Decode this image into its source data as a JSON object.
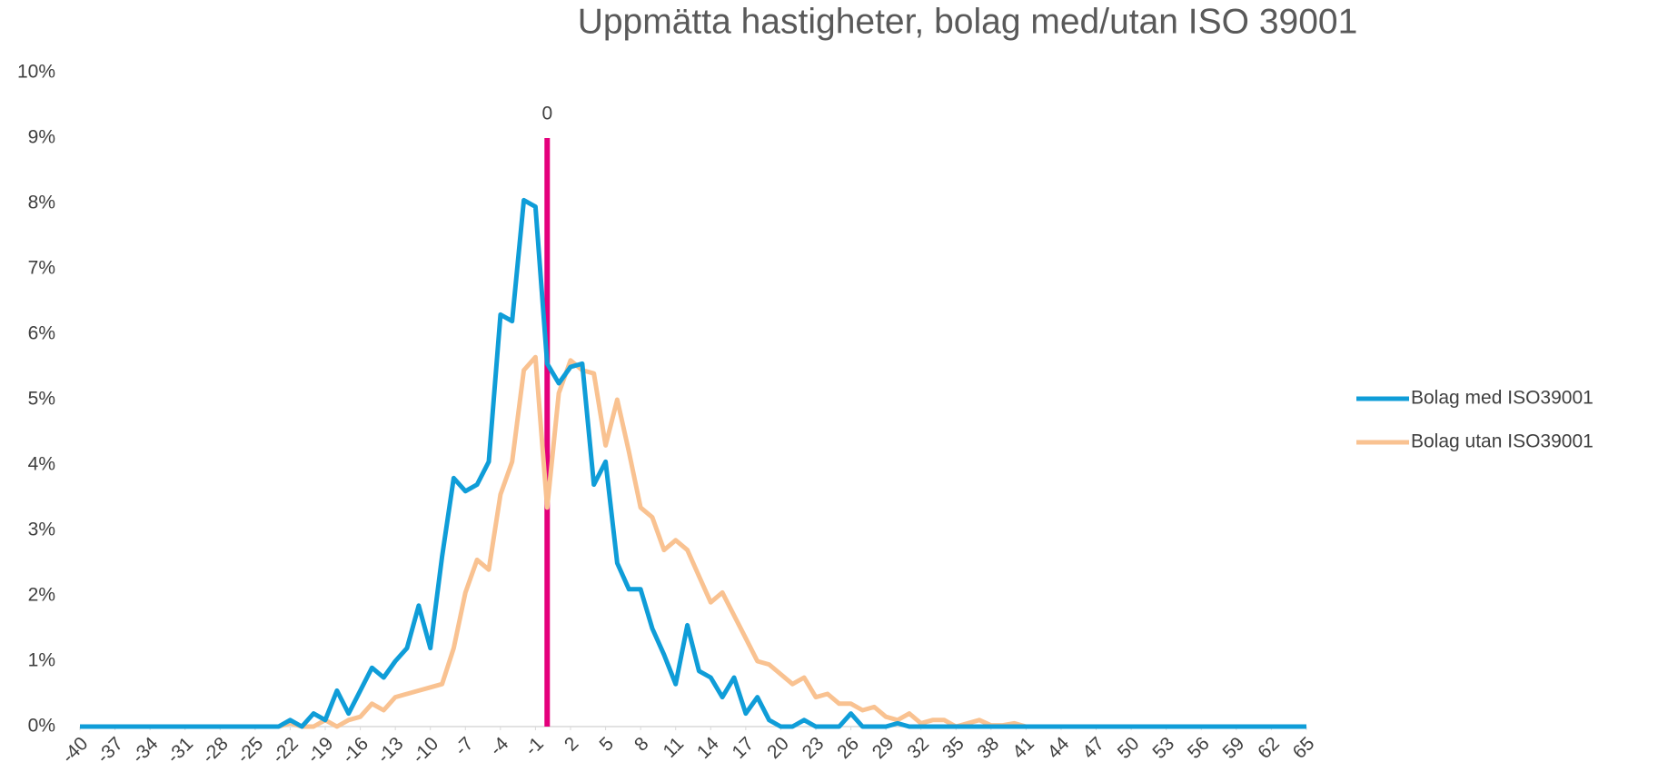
{
  "chart_data": {
    "type": "line",
    "title": "Uppmätta hastigheter, bolag med/utan ISO 39001",
    "x": [
      -40,
      -39,
      -38,
      -37,
      -36,
      -35,
      -34,
      -33,
      -32,
      -31,
      -30,
      -29,
      -28,
      -27,
      -26,
      -25,
      -24,
      -23,
      -22,
      -21,
      -20,
      -19,
      -18,
      -17,
      -16,
      -15,
      -14,
      -13,
      -12,
      -11,
      -10,
      -9,
      -8,
      -7,
      -6,
      -5,
      -4,
      -3,
      -2,
      -1,
      0,
      1,
      2,
      3,
      4,
      5,
      6,
      7,
      8,
      9,
      10,
      11,
      12,
      13,
      14,
      15,
      16,
      17,
      18,
      19,
      20,
      21,
      22,
      23,
      24,
      25,
      26,
      27,
      28,
      29,
      30,
      31,
      32,
      33,
      34,
      35,
      36,
      37,
      38,
      39,
      40,
      41,
      42,
      43,
      44,
      45,
      46,
      47,
      48,
      49,
      50,
      51,
      52,
      53,
      54,
      55,
      56,
      57,
      58,
      59,
      60,
      61,
      62,
      63,
      64,
      65
    ],
    "series": [
      {
        "name": "Bolag med ISO39001",
        "color": "#0f9dd8",
        "values": [
          0,
          0,
          0,
          0,
          0,
          0,
          0,
          0,
          0,
          0,
          0,
          0,
          0,
          0,
          0,
          0,
          0,
          0,
          0.1,
          0,
          0.2,
          0.1,
          0.55,
          0.2,
          0.55,
          0.9,
          0.75,
          1.0,
          1.2,
          1.85,
          1.2,
          2.6,
          3.8,
          3.6,
          3.7,
          4.05,
          6.3,
          6.2,
          8.05,
          7.95,
          5.55,
          5.25,
          5.5,
          5.55,
          3.7,
          4.05,
          2.5,
          2.1,
          2.1,
          1.5,
          1.1,
          0.65,
          1.55,
          0.85,
          0.75,
          0.45,
          0.75,
          0.2,
          0.45,
          0.1,
          0,
          0,
          0.1,
          0,
          0,
          0,
          0.2,
          0,
          0,
          0,
          0.05,
          0,
          0,
          0,
          0,
          0,
          0,
          0,
          0,
          0,
          0,
          0,
          0,
          0,
          0,
          0,
          0,
          0,
          0,
          0,
          0,
          0,
          0,
          0,
          0,
          0,
          0,
          0,
          0,
          0,
          0,
          0,
          0,
          0,
          0,
          0
        ]
      },
      {
        "name": "Bolag utan ISO39001",
        "color": "#f9c291",
        "values": [
          0,
          0,
          0,
          0,
          0,
          0,
          0,
          0,
          0,
          0,
          0,
          0,
          0,
          0,
          0,
          0,
          0,
          0,
          0.05,
          0,
          0,
          0.1,
          0,
          0.1,
          0.15,
          0.35,
          0.25,
          0.45,
          0.5,
          0.55,
          0.6,
          0.65,
          1.2,
          2.05,
          2.55,
          2.4,
          3.55,
          4.05,
          5.45,
          5.65,
          3.35,
          5.1,
          5.6,
          5.45,
          5.4,
          4.3,
          5.0,
          4.2,
          3.35,
          3.2,
          2.7,
          2.85,
          2.7,
          2.3,
          1.9,
          2.05,
          1.7,
          1.35,
          1.0,
          0.95,
          0.8,
          0.65,
          0.75,
          0.45,
          0.5,
          0.35,
          0.35,
          0.25,
          0.3,
          0.15,
          0.1,
          0.2,
          0.05,
          0.1,
          0.1,
          0,
          0.05,
          0.1,
          0.02,
          0.02,
          0.05,
          0,
          0,
          0,
          0,
          0,
          0,
          0,
          0,
          0,
          0,
          0,
          0,
          0,
          0,
          0,
          0,
          0,
          0,
          0,
          0,
          0,
          0,
          0,
          0,
          0
        ]
      }
    ],
    "xlim": [
      -40,
      65
    ],
    "xticks": [
      -40,
      -37,
      -34,
      -31,
      -28,
      -25,
      -22,
      -19,
      -16,
      -13,
      -10,
      -7,
      -4,
      -1,
      2,
      5,
      8,
      11,
      14,
      17,
      20,
      23,
      26,
      29,
      32,
      35,
      38,
      41,
      44,
      47,
      50,
      53,
      56,
      59,
      62,
      65
    ],
    "ylim": [
      0,
      10
    ],
    "yticks": [
      {
        "value": 0,
        "label": "0%"
      },
      {
        "value": 1,
        "label": "1%"
      },
      {
        "value": 2,
        "label": "2%"
      },
      {
        "value": 3,
        "label": "3%"
      },
      {
        "value": 4,
        "label": "4%"
      },
      {
        "value": 5,
        "label": "5%"
      },
      {
        "value": 6,
        "label": "6%"
      },
      {
        "value": 7,
        "label": "7%"
      },
      {
        "value": 8,
        "label": "8%"
      },
      {
        "value": 9,
        "label": "9%"
      },
      {
        "value": 10,
        "label": "10%"
      }
    ],
    "reference_line": {
      "x": 0,
      "top": 9,
      "color": "#e4007c"
    },
    "legend": "right",
    "grid": false
  }
}
